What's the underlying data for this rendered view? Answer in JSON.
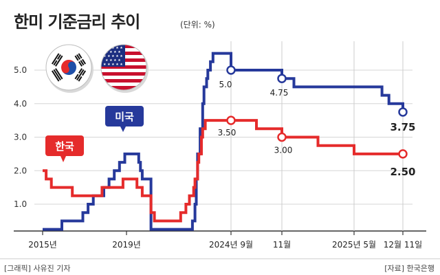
{
  "header": {
    "title": "한미 기준금리 추이",
    "unit": "(단위: %)"
  },
  "footer": {
    "credit": "[그래픽] 사유진 기자",
    "source": "[자료] 한국은행"
  },
  "colors": {
    "us": "#26399b",
    "korea": "#e52b2b",
    "grid": "#d6d6d6"
  },
  "icons": {
    "korea_flag": "korea-flag-icon",
    "us_flag": "us-flag-icon"
  },
  "chart_data": {
    "type": "line",
    "step": true,
    "title": "한미 기준금리 추이",
    "ylabel": "",
    "unit": "%",
    "ylim": [
      0,
      5.5
    ],
    "yticks": [
      1.0,
      2.0,
      3.0,
      4.0,
      5.0
    ],
    "grid": true,
    "x_tick_labels": [
      "2015년",
      "2019년",
      "2024년 9월",
      "11월",
      "2025년 5월",
      "12월 11일"
    ],
    "series": [
      {
        "name": "미국",
        "color": "#26399b",
        "x": [
          "2015-01",
          "2015-12",
          "2016-12",
          "2017-03",
          "2017-06",
          "2017-12",
          "2018-03",
          "2018-06",
          "2018-09",
          "2018-12",
          "2019-08",
          "2019-09",
          "2019-10",
          "2020-03",
          "2022-03",
          "2022-05",
          "2022-06",
          "2022-07",
          "2022-09",
          "2022-11",
          "2022-12",
          "2023-02",
          "2023-03",
          "2023-05",
          "2023-07",
          "2024-09",
          "2024-11",
          "2024-12",
          "2025-09",
          "2025-10",
          "2025-12"
        ],
        "values": [
          0.25,
          0.5,
          0.75,
          1.0,
          1.25,
          1.5,
          1.75,
          2.0,
          2.25,
          2.5,
          2.25,
          2.0,
          1.75,
          0.25,
          0.5,
          1.0,
          1.75,
          2.5,
          3.25,
          4.0,
          4.5,
          4.75,
          5.0,
          5.25,
          5.5,
          5.0,
          4.75,
          4.5,
          4.25,
          4.0,
          3.75
        ],
        "labels": [
          {
            "date": "2024-09",
            "text": "5.0"
          },
          {
            "date": "2024-11",
            "text": "4.75"
          },
          {
            "date": "2025-12",
            "text": "3.75"
          }
        ],
        "bubble_label": "미국"
      },
      {
        "name": "한국",
        "color": "#e52b2b",
        "x": [
          "2015-01",
          "2015-03",
          "2015-06",
          "2016-06",
          "2017-11",
          "2018-11",
          "2019-07",
          "2019-10",
          "2020-03",
          "2020-05",
          "2021-08",
          "2021-11",
          "2022-01",
          "2022-04",
          "2022-05",
          "2022-07",
          "2022-08",
          "2022-10",
          "2022-11",
          "2023-01",
          "2024-10",
          "2024-11",
          "2025-02",
          "2025-05",
          "2025-12"
        ],
        "values": [
          2.0,
          1.75,
          1.5,
          1.25,
          1.5,
          1.75,
          1.5,
          1.25,
          0.75,
          0.5,
          0.75,
          1.0,
          1.25,
          1.5,
          1.75,
          2.25,
          2.5,
          3.0,
          3.25,
          3.5,
          3.25,
          3.0,
          2.75,
          2.5,
          2.5
        ],
        "labels": [
          {
            "date": "2024-09",
            "text": "3.50"
          },
          {
            "date": "2024-11",
            "text": "3.00"
          },
          {
            "date": "2025-12",
            "text": "2.50"
          }
        ],
        "bubble_label": "한국"
      }
    ]
  }
}
